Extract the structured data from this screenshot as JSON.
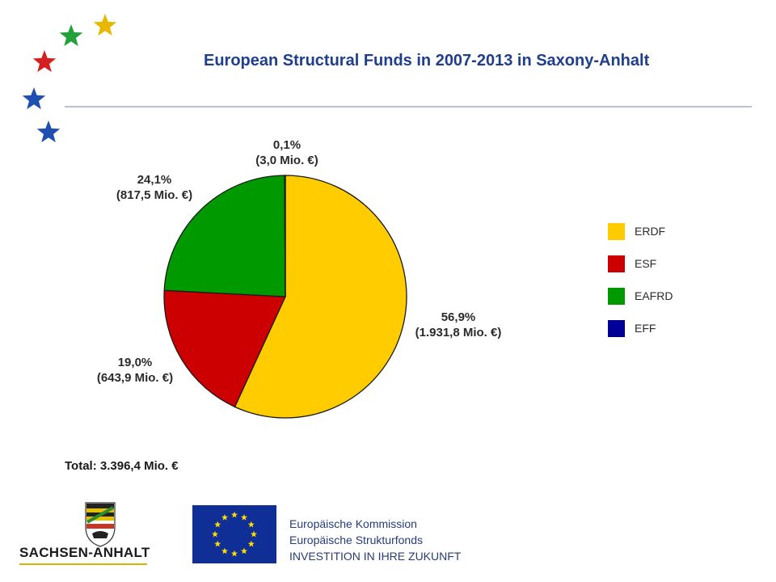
{
  "title": "European Structural Funds in 2007-2013 in Saxony-Anhalt",
  "total": "Total: 3.396,4 Mio. €",
  "footer": {
    "state_name": "SACHSEN-ANHALT",
    "eu_line1": "Europäische Kommission",
    "eu_line2": "Europäische Strukturfonds",
    "eu_line3": "INVESTITION IN IHRE ZUKUNFT"
  },
  "colors": {
    "ERDF": "#ffcc00",
    "ESF": "#cc0000",
    "EAFRD": "#009900",
    "EFF": "#000099",
    "title": "#1f3f8c"
  },
  "chart_data": {
    "type": "pie",
    "title": "European Structural Funds in 2007-2013 in Saxony-Anhalt",
    "legend_position": "right",
    "slices": [
      {
        "name": "ERDF",
        "percent": 56.9,
        "value": 1931.8,
        "label_pct": "56,9%",
        "label_amount": "(1.931,8 Mio. €)",
        "color": "#ffcc00"
      },
      {
        "name": "ESF",
        "percent": 19.0,
        "value": 643.9,
        "label_pct": "19,0%",
        "label_amount": "(643,9 Mio. €)",
        "color": "#cc0000"
      },
      {
        "name": "EAFRD",
        "percent": 24.1,
        "value": 817.5,
        "label_pct": "24,1%",
        "label_amount": "(817,5 Mio. €)",
        "color": "#009900"
      },
      {
        "name": "EFF",
        "percent": 0.1,
        "value": 3.0,
        "label_pct": "0,1%",
        "label_amount": "(3,0 Mio. €)",
        "color": "#000099"
      }
    ],
    "legend": [
      "ERDF",
      "ESF",
      "EAFRD",
      "EFF"
    ]
  }
}
